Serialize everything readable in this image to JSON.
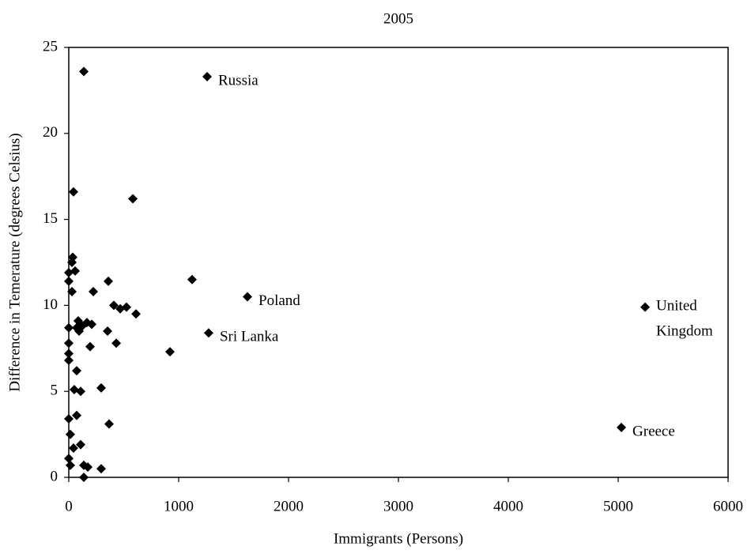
{
  "chart_data": {
    "type": "scatter",
    "title": "2005",
    "x_label": "Immigrants (Persons)",
    "y_label": "Difference in Temerature (degrees Celsius)",
    "color": "#000000",
    "marker": "diamond",
    "grid": false,
    "xlim": [
      0,
      6000
    ],
    "xticks": [
      0,
      1000,
      2000,
      3000,
      4000,
      5000,
      6000
    ],
    "ylim": [
      0,
      25
    ],
    "yticks": [
      0,
      5,
      10,
      15,
      20,
      25
    ],
    "x": [
      137,
      1259,
      43,
      583,
      36,
      29,
      58,
      0,
      0,
      29,
      360,
      1122,
      1626,
      223,
      410,
      468,
      525,
      612,
      0,
      72,
      86,
      94,
      122,
      165,
      209,
      353,
      1273,
      0,
      0,
      0,
      194,
      432,
      921,
      72,
      50,
      108,
      295,
      5245,
      5029,
      72,
      367,
      0,
      14,
      43,
      108,
      0,
      14,
      137,
      173,
      295,
      137
    ],
    "values": [
      23.6,
      23.3,
      16.6,
      16.2,
      12.8,
      12.5,
      12.0,
      11.9,
      11.4,
      10.8,
      11.4,
      11.5,
      10.5,
      10.8,
      10.0,
      9.8,
      9.9,
      9.5,
      8.7,
      8.7,
      9.1,
      8.5,
      8.8,
      9.0,
      8.9,
      8.5,
      8.4,
      7.8,
      7.2,
      6.8,
      7.6,
      7.8,
      7.3,
      6.2,
      5.1,
      5.0,
      5.2,
      9.9,
      2.9,
      3.6,
      3.1,
      3.4,
      2.5,
      1.7,
      1.9,
      1.1,
      0.7,
      0.7,
      0.6,
      0.5,
      0.0
    ],
    "point_labels": [
      null,
      "Russia",
      null,
      null,
      null,
      null,
      null,
      null,
      null,
      null,
      null,
      null,
      "Poland",
      null,
      null,
      null,
      null,
      null,
      null,
      null,
      null,
      null,
      null,
      null,
      null,
      null,
      "Sri Lanka",
      null,
      null,
      null,
      null,
      null,
      null,
      null,
      null,
      null,
      null,
      "United Kingdom",
      "Greece",
      null,
      null,
      null,
      null,
      null,
      null,
      null,
      null,
      null,
      null,
      null,
      null
    ]
  }
}
